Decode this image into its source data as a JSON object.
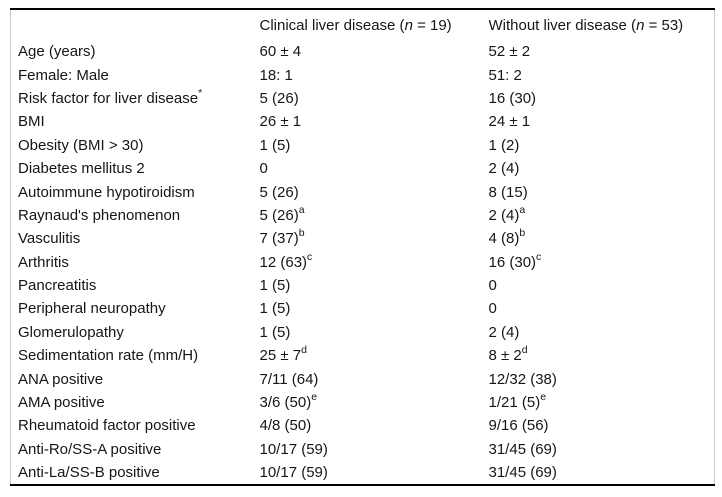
{
  "table": {
    "title_semantic": "patient-characteristics-comparison-table",
    "header": {
      "label_column": "",
      "columns": [
        {
          "prefix": "Clinical liver disease (",
          "n_symbol": "n",
          "suffix": " = 19)"
        },
        {
          "prefix": "Without liver disease (",
          "n_symbol": "n",
          "suffix": " = 53)"
        }
      ]
    },
    "rows": [
      {
        "label": "Age (years)",
        "col1": "60 ± 4",
        "col2": "52 ± 2"
      },
      {
        "label": "Female: Male",
        "col1": "18: 1",
        "col2": "51: 2"
      },
      {
        "label": "Risk factor for liver disease",
        "label_sup": "*",
        "col1": "5 (26)",
        "col2": "16 (30)"
      },
      {
        "label": "BMI",
        "col1": "26 ± 1",
        "col2": "24 ± 1"
      },
      {
        "label": "Obesity (BMI > 30)",
        "col1": "1 (5)",
        "col2": "1 (2)"
      },
      {
        "label": "Diabetes mellitus 2",
        "col1": "0",
        "col2": "2 (4)"
      },
      {
        "label": "Autoimmune hypotiroidism",
        "col1": "5 (26)",
        "col2": "8 (15)"
      },
      {
        "label": "Raynaud's phenomenon",
        "col1": "5 (26)",
        "col1_sup": "a",
        "col2": "2 (4)",
        "col2_sup": "a"
      },
      {
        "label": "Vasculitis",
        "col1": "7 (37)",
        "col1_sup": "b",
        "col2": "4 (8)",
        "col2_sup": "b"
      },
      {
        "label": "Arthritis",
        "col1": "12 (63)",
        "col1_sup": "c",
        "col2": "16 (30)",
        "col2_sup": "c"
      },
      {
        "label": "Pancreatitis",
        "col1": "1 (5)",
        "col2": "0"
      },
      {
        "label": "Peripheral neuropathy",
        "col1": "1 (5)",
        "col2": "0"
      },
      {
        "label": "Glomerulopathy",
        "col1": "1 (5)",
        "col2": "2 (4)"
      },
      {
        "label": "Sedimentation rate (mm/H)",
        "col1": "25 ± 7",
        "col1_sup": "d",
        "col2": "8 ± 2",
        "col2_sup": "d"
      },
      {
        "label": "ANA positive",
        "col1": "7/11 (64)",
        "col2": "12/32 (38)"
      },
      {
        "label": "AMA positive",
        "col1": "3/6 (50)",
        "col1_sup": "e",
        "col2": "1/21 (5)",
        "col2_sup": "e"
      },
      {
        "label": "Rheumatoid factor positive",
        "col1": "4/8 (50)",
        "col2": "9/16 (56)"
      },
      {
        "label": "Anti-Ro/SS-A positive",
        "col1": "10/17 (59)",
        "col2": "31/45 (69)"
      },
      {
        "label": "Anti-La/SS-B positive",
        "col1": "10/17 (59)",
        "col2": "31/45 (69)"
      }
    ],
    "colors": {
      "text": "#161616",
      "rule": "#000000",
      "side_border": "#c9c9c9",
      "background": "#ffffff"
    }
  }
}
